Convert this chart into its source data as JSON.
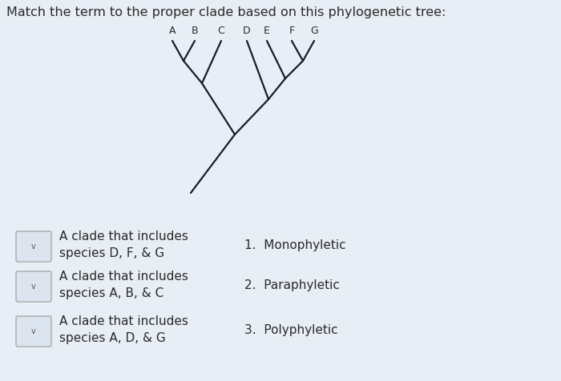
{
  "title": "Match the term to the proper clade based on this phylogenetic tree:",
  "bg_color": "#e8eef5",
  "species_labels": [
    "A",
    "B",
    "C",
    "D",
    "E",
    "F",
    "G"
  ],
  "left_items": [
    "A clade that includes\nspecies D, F, & G",
    "A clade that includes\nspecies A, B, & C",
    "A clade that includes\nspecies A, D, & G"
  ],
  "right_items": [
    "1.  Monophyletic",
    "2.  Paraphyletic",
    "3.  Polyphyletic"
  ],
  "tree_line_color": "#1a1a2e",
  "text_color": "#2a2a2a",
  "title_fontsize": 11.5,
  "label_fontsize": 9,
  "list_fontsize": 11
}
